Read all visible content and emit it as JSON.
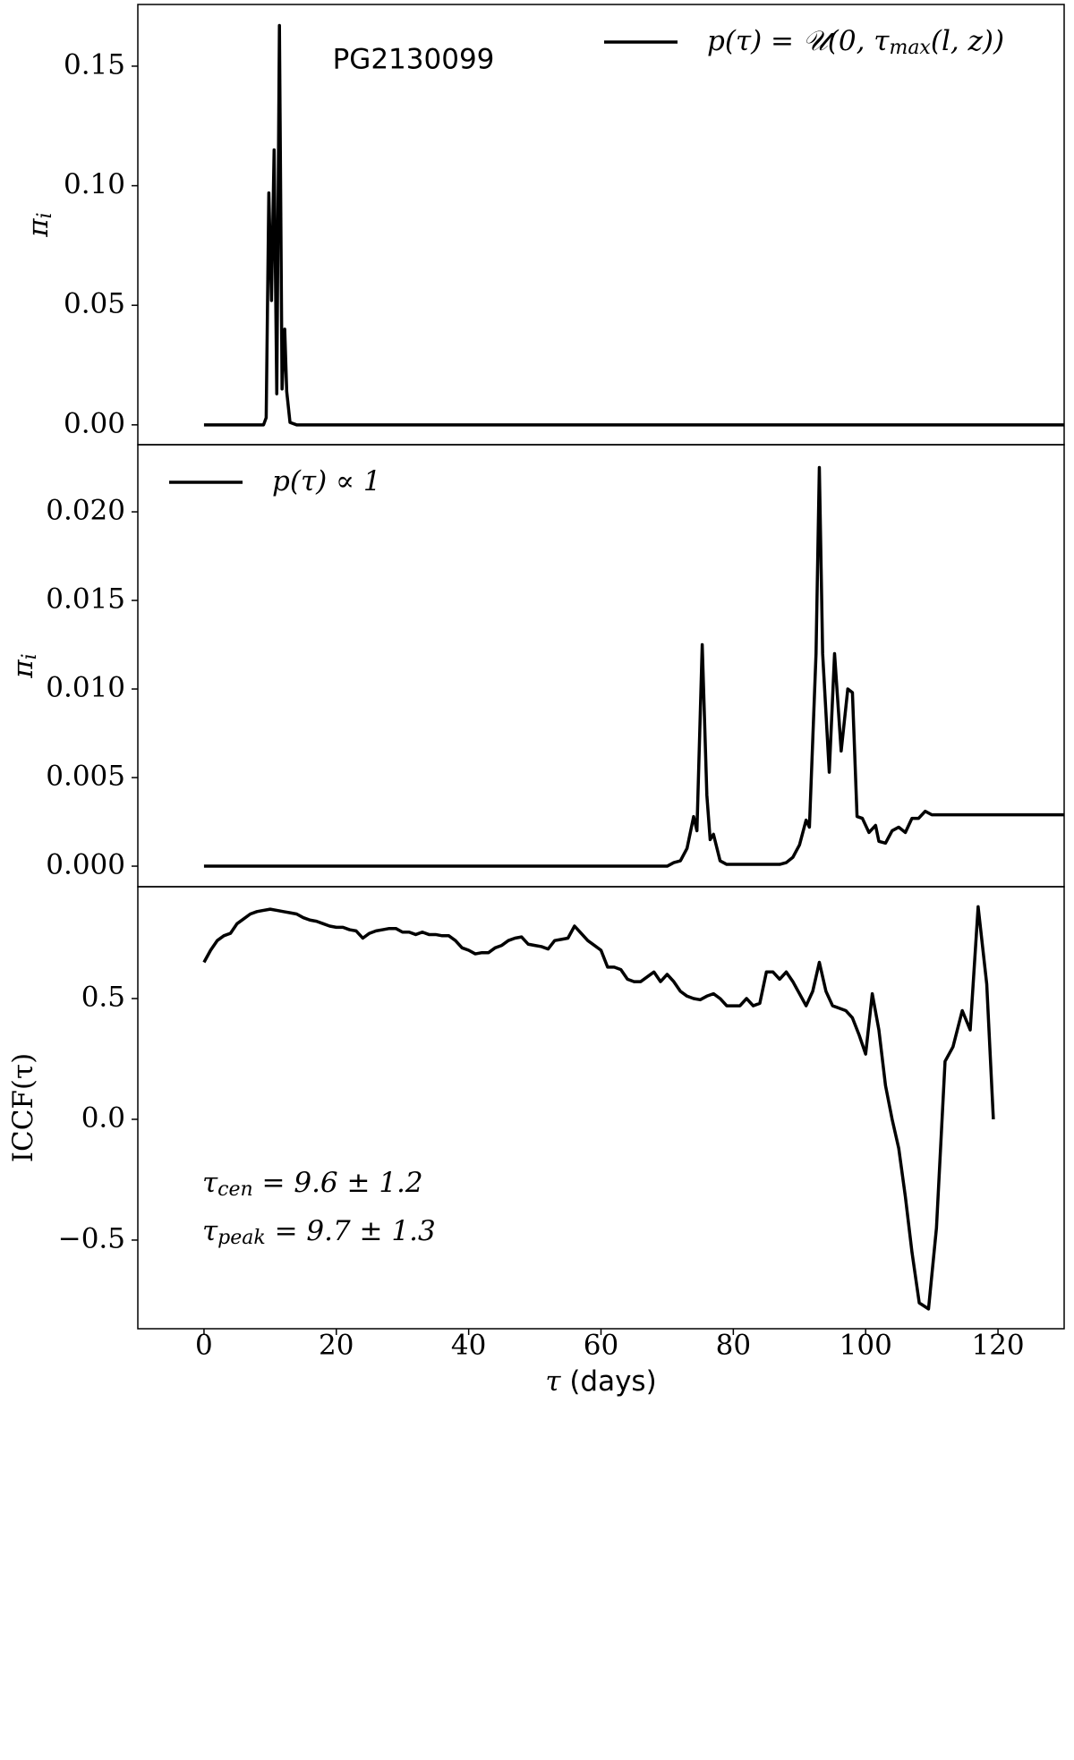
{
  "chart_data": [
    {
      "type": "line",
      "annotations": [
        "PG2130099"
      ],
      "ylabel": [
        "π",
        {
          "sub": "i"
        }
      ],
      "legend_loc": "upper right",
      "xlim": [
        -10,
        130
      ],
      "ylim": [
        -0.0083,
        0.1758
      ],
      "yticks": [
        {
          "value": 0,
          "label": "0.00"
        },
        {
          "value": 0.05,
          "label": "0.05"
        },
        {
          "value": 0.1,
          "label": "0.10"
        },
        0.15
      ],
      "series": [
        {
          "name": [
            "p(τ) = 𝒰(0, τ",
            {
              "sub": "max"
            },
            "(l, z))"
          ],
          "color": "#000000",
          "x": [
            0,
            9,
            9.4,
            9.8,
            10.2,
            10.6,
            11.0,
            11.4,
            11.8,
            12.2,
            12.5,
            13,
            14,
            130
          ],
          "values": [
            0,
            0,
            0.003,
            0.097,
            0.052,
            0.115,
            0.013,
            0.167,
            0.015,
            0.04,
            0.014,
            0.001,
            0,
            0
          ]
        }
      ]
    },
    {
      "type": "line",
      "ylabel": [
        "π",
        {
          "sub": "i"
        }
      ],
      "legend_loc": "upper left",
      "xlim": [
        -10,
        130
      ],
      "ylim": [
        -0.00116,
        0.02379
      ],
      "yticks": [
        {
          "value": 0,
          "label": "0.000"
        },
        {
          "value": 0.005,
          "label": "0.005"
        },
        {
          "value": 0.01,
          "label": "0.010"
        },
        {
          "value": 0.015,
          "label": "0.015"
        },
        {
          "value": 0.02,
          "label": "0.020"
        }
      ],
      "series": [
        {
          "name": [
            "p(τ) ∝ 1"
          ],
          "color": "#000000",
          "x": [
            0,
            70,
            71,
            72,
            73,
            74,
            74.5,
            75.3,
            76,
            76.5,
            77,
            78,
            79,
            80,
            87,
            88,
            89,
            90,
            91,
            91.5,
            92.5,
            93,
            93.5,
            94.5,
            95.3,
            96.3,
            97.3,
            98,
            98.7,
            99.5,
            100.5,
            101.5,
            102,
            103,
            104,
            105,
            106,
            107,
            108,
            109,
            110,
            130
          ],
          "values": [
            0,
            0,
            0.0002,
            0.0003,
            0.001,
            0.0028,
            0.002,
            0.0125,
            0.004,
            0.0015,
            0.0018,
            0.0003,
            0.0001,
            0.0001,
            0.0001,
            0.0002,
            0.0005,
            0.0012,
            0.0026,
            0.0022,
            0.012,
            0.0225,
            0.012,
            0.0053,
            0.012,
            0.0065,
            0.01,
            0.0098,
            0.0028,
            0.0027,
            0.0019,
            0.0023,
            0.0014,
            0.0013,
            0.002,
            0.0022,
            0.0019,
            0.0027,
            0.0027,
            0.0031,
            0.0029,
            0.0029
          ]
        }
      ]
    },
    {
      "type": "line",
      "ylabel": [
        "ICCF(τ)"
      ],
      "xlabel": [
        "τ",
        " (days)"
      ],
      "annotations": [
        [
          "τ",
          {
            "sub": "cen"
          },
          " = 9.6 ± 1.2"
        ],
        [
          "τ",
          {
            "sub": "peak"
          },
          " = 9.7 ± 1.3"
        ]
      ],
      "xlim": [
        -10,
        130
      ],
      "ylim": [
        -0.867,
        0.963
      ],
      "xticks": [
        0,
        20,
        40,
        60,
        80,
        100,
        120
      ],
      "yticks": [
        {
          "value": -0.5,
          "label": "−0.5"
        },
        {
          "value": 0,
          "label": "0.0"
        },
        0.5
      ],
      "series": [
        {
          "color": "#000000",
          "x": [
            0,
            1,
            2,
            3,
            4,
            5,
            6,
            7,
            8,
            9,
            10,
            11,
            12,
            13,
            14,
            15,
            16,
            17,
            18,
            19,
            20,
            21,
            22,
            23,
            24,
            25,
            26,
            27,
            28,
            29,
            30,
            31,
            32,
            33,
            34,
            35,
            36,
            37,
            38,
            39,
            40,
            41,
            42,
            43,
            44,
            45,
            46,
            47,
            48,
            49,
            50,
            51,
            52,
            53,
            54,
            55,
            56,
            57,
            58,
            59,
            60,
            61,
            62,
            63,
            64,
            65,
            66,
            67,
            68,
            69,
            70,
            71,
            72,
            73,
            74,
            75,
            76,
            77,
            78,
            79,
            80,
            81,
            82,
            83,
            84,
            85,
            86,
            87,
            88,
            89,
            90,
            91,
            92,
            93,
            94,
            95,
            96,
            97,
            98,
            99,
            100,
            101,
            102,
            103,
            104,
            105,
            106,
            107,
            108.1,
            109.5,
            110.7,
            112,
            113.2,
            114.6,
            115.8,
            117,
            118.3,
            119.3
          ],
          "values": [
            0.65,
            0.7,
            0.74,
            0.76,
            0.77,
            0.81,
            0.83,
            0.85,
            0.86,
            0.865,
            0.87,
            0.865,
            0.86,
            0.855,
            0.85,
            0.835,
            0.825,
            0.82,
            0.81,
            0.8,
            0.795,
            0.795,
            0.785,
            0.78,
            0.75,
            0.77,
            0.78,
            0.785,
            0.79,
            0.79,
            0.775,
            0.775,
            0.765,
            0.775,
            0.765,
            0.765,
            0.76,
            0.76,
            0.74,
            0.71,
            0.7,
            0.685,
            0.69,
            0.69,
            0.71,
            0.72,
            0.74,
            0.75,
            0.755,
            0.725,
            0.72,
            0.715,
            0.705,
            0.74,
            0.745,
            0.75,
            0.8,
            0.77,
            0.74,
            0.72,
            0.7,
            0.63,
            0.63,
            0.62,
            0.58,
            0.57,
            0.57,
            0.59,
            0.61,
            0.57,
            0.6,
            0.57,
            0.53,
            0.51,
            0.5,
            0.495,
            0.51,
            0.52,
            0.5,
            0.47,
            0.47,
            0.47,
            0.5,
            0.47,
            0.48,
            0.61,
            0.61,
            0.58,
            0.61,
            0.57,
            0.52,
            0.47,
            0.53,
            0.65,
            0.53,
            0.47,
            0.46,
            0.45,
            0.42,
            0.35,
            0.27,
            0.52,
            0.37,
            0.14,
            0.0,
            -0.12,
            -0.32,
            -0.55,
            -0.76,
            -0.785,
            -0.45,
            0.24,
            0.3,
            0.45,
            0.37,
            0.88,
            0.56,
            0.0
          ]
        }
      ]
    }
  ]
}
